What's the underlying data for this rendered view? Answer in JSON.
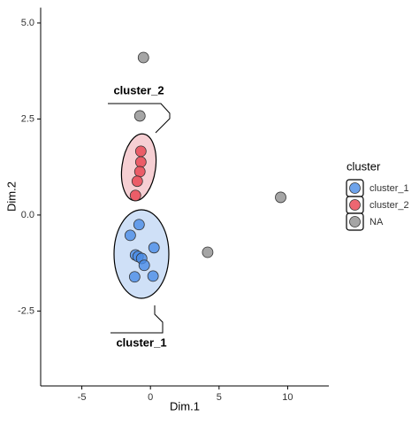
{
  "chart_data": {
    "type": "scatter",
    "x_label": "Dim.1",
    "y_label": "Dim.2",
    "xlim": [
      -8,
      13
    ],
    "ylim": [
      -4.45,
      5.4
    ],
    "xticks": [
      -5,
      0,
      5,
      10
    ],
    "yticks": [
      {
        "value": 5,
        "label": "5.0"
      },
      {
        "value": 2.5,
        "label": "2.5"
      },
      {
        "value": 0,
        "label": "0.0"
      },
      {
        "value": -2.5,
        "label": "-2.5"
      }
    ],
    "legend_title": "cluster",
    "legend_position": "right",
    "annotations": [
      "cluster_2",
      "cluster_1"
    ],
    "series": [
      {
        "name": "cluster_1",
        "color": "#4a8ce6",
        "x": [
          -0.83,
          -1.47,
          0.26,
          -1.09,
          -0.9,
          -0.64,
          -0.45,
          -1.15,
          0.19
        ],
        "values": [
          -0.25,
          -0.53,
          -0.85,
          -1.04,
          -1.08,
          -1.13,
          -1.31,
          -1.61,
          -1.59
        ]
      },
      {
        "name": "cluster_2",
        "color": "#e8404e",
        "x": [
          -0.7,
          -0.7,
          -0.77,
          -0.96,
          -1.09
        ],
        "values": [
          1.66,
          1.38,
          1.13,
          0.88,
          0.51
        ]
      },
      {
        "name": "NA",
        "color": "#8f8f8f",
        "x": [
          -0.51,
          -0.77,
          9.49,
          4.17
        ],
        "values": [
          4.1,
          2.58,
          0.46,
          -0.97
        ]
      }
    ]
  }
}
